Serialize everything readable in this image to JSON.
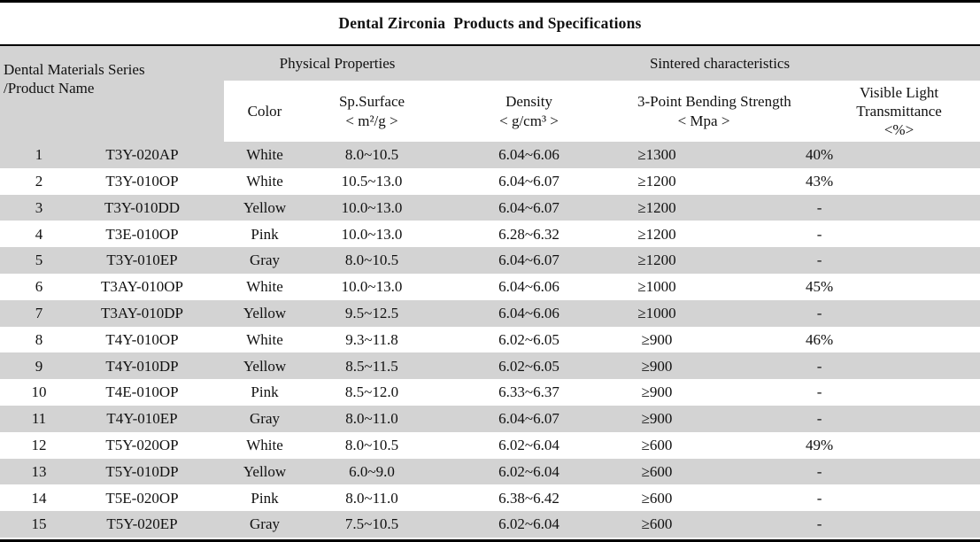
{
  "title": "Dental Zirconia  Products and Specifications",
  "table": {
    "left_header": "Dental Materials Series\n/Product Name",
    "group_headers": [
      "Physical Properties",
      "Sintered characteristics"
    ],
    "sub_headers": [
      "Color",
      "Sp.Surface\n< m²/g >",
      "Density\n< g/cm³ >",
      "3-Point Bending Strength\n< Mpa >",
      "Visible Light\nTransmittance\n<%>"
    ],
    "col_keys": [
      "no",
      "product-name",
      "color",
      "sp-surface",
      "density",
      "bending-strength",
      "transmittance"
    ],
    "rows": [
      [
        "1",
        "T3Y-020AP",
        "White",
        "8.0~10.5",
        "6.04~6.06",
        "≥1300",
        "40%"
      ],
      [
        "2",
        "T3Y-010OP",
        "White",
        "10.5~13.0",
        "6.04~6.07",
        "≥1200",
        "43%"
      ],
      [
        "3",
        "T3Y-010DD",
        "Yellow",
        "10.0~13.0",
        "6.04~6.07",
        "≥1200",
        "-"
      ],
      [
        "4",
        "T3E-010OP",
        "Pink",
        "10.0~13.0",
        "6.28~6.32",
        "≥1200",
        "-"
      ],
      [
        "5",
        "T3Y-010EP",
        "Gray",
        "8.0~10.5",
        "6.04~6.07",
        "≥1200",
        "-"
      ],
      [
        "6",
        "T3AY-010OP",
        "White",
        "10.0~13.0",
        "6.04~6.06",
        "≥1000",
        "45%"
      ],
      [
        "7",
        "T3AY-010DP",
        "Yellow",
        "9.5~12.5",
        "6.04~6.06",
        "≥1000",
        "-"
      ],
      [
        "8",
        "T4Y-010OP",
        "White",
        "9.3~11.8",
        "6.02~6.05",
        "≥900",
        "46%"
      ],
      [
        "9",
        "T4Y-010DP",
        "Yellow",
        "8.5~11.5",
        "6.02~6.05",
        "≥900",
        "-"
      ],
      [
        "10",
        "T4E-010OP",
        "Pink",
        "8.5~12.0",
        "6.33~6.37",
        "≥900",
        "-"
      ],
      [
        "11",
        "T4Y-010EP",
        "Gray",
        "8.0~11.0",
        "6.04~6.07",
        "≥900",
        "-"
      ],
      [
        "12",
        "T5Y-020OP",
        "White",
        "8.0~10.5",
        "6.02~6.04",
        "≥600",
        "49%"
      ],
      [
        "13",
        "T5Y-010DP",
        "Yellow",
        "6.0~9.0",
        "6.02~6.04",
        "≥600",
        "-"
      ],
      [
        "14",
        "T5E-020OP",
        "Pink",
        "8.0~11.0",
        "6.38~6.42",
        "≥600",
        "-"
      ],
      [
        "15",
        "T5Y-020EP",
        "Gray",
        "7.5~10.5",
        "6.02~6.04",
        "≥600",
        "-"
      ]
    ]
  },
  "colors": {
    "row_alt": "#d3d3d3",
    "border": "#000000",
    "background": "#ffffff",
    "text": "#111111"
  }
}
